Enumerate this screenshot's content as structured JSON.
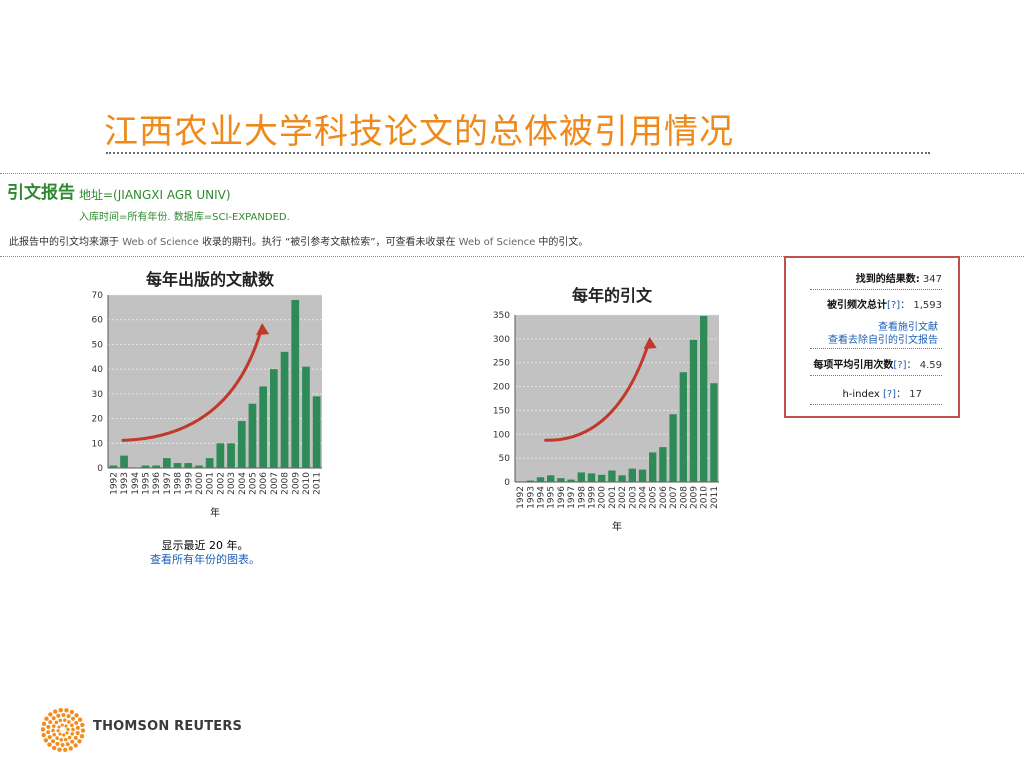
{
  "slide": {
    "title": "江西农业大学科技论文的总体被引用情况"
  },
  "report": {
    "heading": "引文报告",
    "query": "地址=(JIANGXI AGR UNIV)",
    "filter": "入库时间=所有年份. 数据库=SCI-EXPANDED.",
    "note_prefix": "此报告中的引文均来源于",
    "note_wos_1": "Web of Science",
    "note_middle": "收录的期刊。执行 “被引参考文献检索”，可查看未收录在",
    "note_wos_2": "Web of Science",
    "note_suffix": "中的引文。"
  },
  "summary": {
    "results_label": "找到的结果数:",
    "results_value": "347",
    "times_cited_label": "被引频次总计",
    "times_cited_help": "[?]",
    "times_cited_sep": "：",
    "times_cited_value": "1,593",
    "citing_link": "查看施引文献",
    "no_self_link": "查看去除自引的引文报告",
    "avg_label": "每项平均引用次数",
    "avg_help": "[?]",
    "avg_sep": "：",
    "avg_value": "4.59",
    "hindex_label": "h-index",
    "hindex_help": "[?]",
    "hindex_sep": "：",
    "hindex_value": "17"
  },
  "footnote": {
    "recent_prefix": "显示最近",
    "recent_value": "20",
    "recent_suffix": "年。",
    "all_years_link": "查看所有年份的图表。"
  },
  "colors": {
    "bar": "#2e8b57",
    "plot_bg": "#c2c2c2",
    "trend_arrow": "#c0392b",
    "title": "#ef8a1a",
    "summary_border": "#c0504d"
  },
  "logo": {
    "text": "THOMSON REUTERS",
    "icon": "thomson-reuters-logo-icon"
  },
  "chart_data": [
    {
      "type": "bar",
      "title": "每年出版的文献数",
      "xlabel": "年",
      "ylabel": "",
      "categories": [
        "1992",
        "1993",
        "1994",
        "1995",
        "1996",
        "1997",
        "1998",
        "1999",
        "2000",
        "2001",
        "2002",
        "2003",
        "2004",
        "2005",
        "2006",
        "2007",
        "2008",
        "2009",
        "2010",
        "2011"
      ],
      "values": [
        1,
        5,
        0,
        1,
        1,
        4,
        2,
        2,
        1,
        4,
        10,
        10,
        19,
        26,
        33,
        40,
        47,
        68,
        41,
        29
      ],
      "ylim": [
        0,
        70
      ],
      "yticks": [
        0,
        10,
        20,
        30,
        40,
        50,
        60,
        70
      ],
      "grid": true,
      "legend": "none",
      "trend_arrow": true
    },
    {
      "type": "bar",
      "title": "每年的引文",
      "xlabel": "年",
      "ylabel": "",
      "categories": [
        "1992",
        "1993",
        "1994",
        "1995",
        "1996",
        "1997",
        "1998",
        "1999",
        "2000",
        "2001",
        "2002",
        "2003",
        "2004",
        "2005",
        "2006",
        "2007",
        "2008",
        "2009",
        "2010",
        "2011"
      ],
      "values": [
        0,
        3,
        10,
        14,
        8,
        5,
        20,
        18,
        15,
        24,
        14,
        28,
        26,
        62,
        73,
        142,
        230,
        298,
        348,
        207
      ],
      "ylim": [
        0,
        350
      ],
      "yticks": [
        0,
        50,
        100,
        150,
        200,
        250,
        300,
        350
      ],
      "grid": true,
      "legend": "none",
      "trend_arrow": true
    }
  ]
}
